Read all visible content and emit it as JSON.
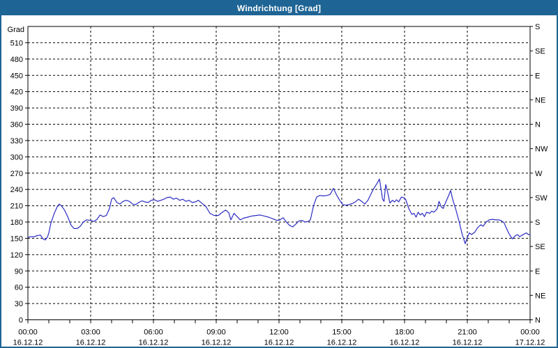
{
  "window": {
    "title": "Windrichtung [Grad]",
    "titlebar_color": "#1e6494",
    "border_color": "#1e6494",
    "background_color": "#ffffff"
  },
  "chart_data": {
    "type": "line",
    "title": "Windrichtung [Grad]",
    "ylabel": "Grad",
    "xlabel": "",
    "grid": true,
    "legend_position": "none",
    "axis_color": "#000000",
    "grid_color": "#000000",
    "line_color": "#2b2bc4",
    "text_color": "#000000",
    "xlim_hours": [
      0,
      24
    ],
    "ylim": [
      0,
      540
    ],
    "left_tick_values": [
      0,
      30,
      60,
      90,
      120,
      150,
      180,
      210,
      240,
      270,
      300,
      330,
      360,
      390,
      420,
      450,
      480,
      510
    ],
    "right_ticks": [
      {
        "value": 0,
        "label": "N"
      },
      {
        "value": 45,
        "label": "NE"
      },
      {
        "value": 90,
        "label": "E"
      },
      {
        "value": 135,
        "label": "SE"
      },
      {
        "value": 180,
        "label": "S"
      },
      {
        "value": 225,
        "label": "SW"
      },
      {
        "value": 270,
        "label": "W"
      },
      {
        "value": 315,
        "label": "NW"
      },
      {
        "value": 360,
        "label": "N"
      },
      {
        "value": 405,
        "label": "NE"
      },
      {
        "value": 450,
        "label": "E"
      },
      {
        "value": 495,
        "label": "SE"
      },
      {
        "value": 540,
        "label": "S"
      }
    ],
    "x_major_ticks": [
      {
        "hours": 0,
        "time": "00:00",
        "date": "16.12.12"
      },
      {
        "hours": 3,
        "time": "03:00",
        "date": "16.12.12"
      },
      {
        "hours": 6,
        "time": "06:00",
        "date": "16.12.12"
      },
      {
        "hours": 9,
        "time": "09:00",
        "date": "16.12.12"
      },
      {
        "hours": 12,
        "time": "12:00",
        "date": "16.12.12"
      },
      {
        "hours": 15,
        "time": "15:00",
        "date": "16.12.12"
      },
      {
        "hours": 18,
        "time": "18:00",
        "date": "16.12.12"
      },
      {
        "hours": 21,
        "time": "21:00",
        "date": "16.12.12"
      },
      {
        "hours": 24,
        "time": "00:00",
        "date": "17.12.12"
      }
    ],
    "x_minor_step_hours": 1,
    "series": [
      {
        "name": "Windrichtung",
        "points": [
          [
            0,
            152
          ],
          [
            0.15,
            153
          ],
          [
            0.3,
            153
          ],
          [
            0.45,
            155
          ],
          [
            0.6,
            156
          ],
          [
            0.72,
            149
          ],
          [
            0.83,
            147
          ],
          [
            0.93,
            152
          ],
          [
            1.0,
            160
          ],
          [
            1.1,
            178
          ],
          [
            1.25,
            195
          ],
          [
            1.4,
            208
          ],
          [
            1.5,
            213
          ],
          [
            1.6,
            210
          ],
          [
            1.75,
            202
          ],
          [
            1.9,
            190
          ],
          [
            2.05,
            175
          ],
          [
            2.2,
            168
          ],
          [
            2.35,
            168
          ],
          [
            2.5,
            172
          ],
          [
            2.65,
            180
          ],
          [
            2.8,
            184
          ],
          [
            3.0,
            183
          ],
          [
            3.15,
            181
          ],
          [
            3.3,
            185
          ],
          [
            3.45,
            193
          ],
          [
            3.6,
            190
          ],
          [
            3.75,
            192
          ],
          [
            3.9,
            205
          ],
          [
            4.0,
            222
          ],
          [
            4.1,
            225
          ],
          [
            4.25,
            216
          ],
          [
            4.4,
            213
          ],
          [
            4.55,
            218
          ],
          [
            4.7,
            220
          ],
          [
            4.85,
            218
          ],
          [
            5.0,
            213
          ],
          [
            5.15,
            212
          ],
          [
            5.3,
            216
          ],
          [
            5.45,
            219
          ],
          [
            5.6,
            217
          ],
          [
            5.75,
            216
          ],
          [
            5.9,
            220
          ],
          [
            6.05,
            221
          ],
          [
            6.2,
            218
          ],
          [
            6.35,
            220
          ],
          [
            6.5,
            222
          ],
          [
            6.65,
            225
          ],
          [
            6.8,
            226
          ],
          [
            6.95,
            222
          ],
          [
            7.1,
            224
          ],
          [
            7.25,
            220
          ],
          [
            7.4,
            222
          ],
          [
            7.55,
            218
          ],
          [
            7.7,
            220
          ],
          [
            7.85,
            216
          ],
          [
            8.0,
            217
          ],
          [
            8.15,
            220
          ],
          [
            8.3,
            215
          ],
          [
            8.5,
            209
          ],
          [
            8.7,
            196
          ],
          [
            8.9,
            192
          ],
          [
            9.1,
            192
          ],
          [
            9.3,
            198
          ],
          [
            9.45,
            202
          ],
          [
            9.6,
            197
          ],
          [
            9.7,
            184
          ],
          [
            9.85,
            196
          ],
          [
            10.0,
            190
          ],
          [
            10.15,
            184
          ],
          [
            10.3,
            187
          ],
          [
            10.5,
            189
          ],
          [
            10.7,
            191
          ],
          [
            10.9,
            192
          ],
          [
            11.1,
            193
          ],
          [
            11.3,
            191
          ],
          [
            11.5,
            189
          ],
          [
            11.7,
            186
          ],
          [
            11.9,
            183
          ],
          [
            12.05,
            184
          ],
          [
            12.2,
            188
          ],
          [
            12.35,
            180
          ],
          [
            12.5,
            174
          ],
          [
            12.65,
            171
          ],
          [
            12.8,
            176
          ],
          [
            12.95,
            182
          ],
          [
            13.1,
            183
          ],
          [
            13.25,
            180
          ],
          [
            13.4,
            181
          ],
          [
            13.5,
            184
          ],
          [
            13.65,
            210
          ],
          [
            13.8,
            226
          ],
          [
            13.95,
            229
          ],
          [
            14.1,
            228
          ],
          [
            14.3,
            229
          ],
          [
            14.45,
            231
          ],
          [
            14.6,
            242
          ],
          [
            14.75,
            230
          ],
          [
            14.9,
            220
          ],
          [
            15.05,
            212
          ],
          [
            15.2,
            211
          ],
          [
            15.35,
            212
          ],
          [
            15.5,
            214
          ],
          [
            15.65,
            217
          ],
          [
            15.8,
            222
          ],
          [
            15.95,
            218
          ],
          [
            16.1,
            213
          ],
          [
            16.25,
            220
          ],
          [
            16.4,
            232
          ],
          [
            16.55,
            243
          ],
          [
            16.7,
            252
          ],
          [
            16.8,
            259
          ],
          [
            16.88,
            240
          ],
          [
            16.95,
            222
          ],
          [
            17.02,
            218
          ],
          [
            17.1,
            249
          ],
          [
            17.18,
            237
          ],
          [
            17.3,
            215
          ],
          [
            17.42,
            220
          ],
          [
            17.52,
            217
          ],
          [
            17.62,
            221
          ],
          [
            17.72,
            217
          ],
          [
            17.85,
            226
          ],
          [
            17.95,
            225
          ],
          [
            18.05,
            222
          ],
          [
            18.2,
            205
          ],
          [
            18.35,
            194
          ],
          [
            18.45,
            196
          ],
          [
            18.55,
            189
          ],
          [
            18.65,
            198
          ],
          [
            18.75,
            193
          ],
          [
            18.85,
            196
          ],
          [
            18.95,
            190
          ],
          [
            19.05,
            198
          ],
          [
            19.2,
            196
          ],
          [
            19.3,
            200
          ],
          [
            19.4,
            198
          ],
          [
            19.55,
            204
          ],
          [
            19.65,
            218
          ],
          [
            19.75,
            208
          ],
          [
            19.85,
            205
          ],
          [
            19.95,
            215
          ],
          [
            20.1,
            228
          ],
          [
            20.2,
            238
          ],
          [
            20.3,
            222
          ],
          [
            20.45,
            203
          ],
          [
            20.6,
            182
          ],
          [
            20.75,
            158
          ],
          [
            20.9,
            140
          ],
          [
            21.0,
            152
          ],
          [
            21.1,
            160
          ],
          [
            21.2,
            157
          ],
          [
            21.35,
            161
          ],
          [
            21.5,
            170
          ],
          [
            21.65,
            175
          ],
          [
            21.75,
            172
          ],
          [
            21.9,
            180
          ],
          [
            22.05,
            184
          ],
          [
            22.2,
            185
          ],
          [
            22.35,
            184
          ],
          [
            22.5,
            184
          ],
          [
            22.6,
            183
          ],
          [
            22.75,
            179
          ],
          [
            22.85,
            170
          ],
          [
            23.0,
            158
          ],
          [
            23.15,
            149
          ],
          [
            23.3,
            155
          ],
          [
            23.4,
            157
          ],
          [
            23.5,
            153
          ],
          [
            23.62,
            156
          ],
          [
            23.72,
            158
          ],
          [
            23.82,
            160
          ],
          [
            23.92,
            157
          ],
          [
            24.0,
            157
          ]
        ]
      }
    ]
  }
}
